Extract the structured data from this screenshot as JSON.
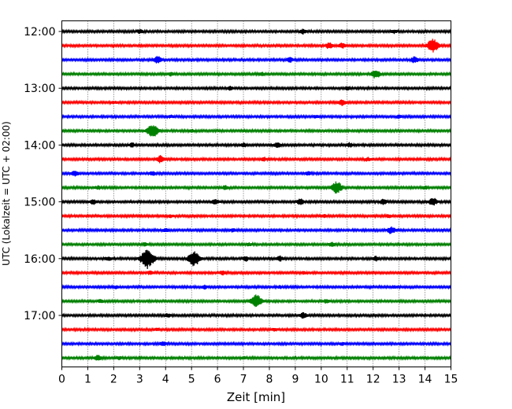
{
  "chart_data": {
    "type": "line",
    "title": "",
    "xlabel": "Zeit  [min]",
    "ylabel": "UTC (Lokalzeit = UTC + 02:00)",
    "xlim": [
      0,
      15
    ],
    "x_ticks": [
      "0",
      "1",
      "2",
      "3",
      "4",
      "5",
      "6",
      "7",
      "8",
      "9",
      "10",
      "11",
      "12",
      "13",
      "14",
      "15"
    ],
    "y_ticks": [
      "12:00",
      "13:00",
      "14:00",
      "15:00",
      "16:00",
      "17:00"
    ],
    "grid": "vertical-dotted",
    "row_colors": [
      "#000000",
      "#ff0000",
      "#0000ff",
      "#008000"
    ],
    "rows": [
      {
        "time": "12:00",
        "events": [
          {
            "x": 3.0,
            "amp": 0.25
          },
          {
            "x": 9.3,
            "amp": 0.3
          },
          {
            "x": 12.8,
            "amp": 0.2
          }
        ]
      },
      {
        "time": "12:15",
        "events": [
          {
            "x": 10.3,
            "amp": 0.35
          },
          {
            "x": 10.8,
            "amp": 0.3
          },
          {
            "x": 14.3,
            "amp": 0.9
          }
        ]
      },
      {
        "time": "12:30",
        "events": [
          {
            "x": 3.7,
            "amp": 0.45
          },
          {
            "x": 8.8,
            "amp": 0.3
          },
          {
            "x": 13.6,
            "amp": 0.4
          }
        ]
      },
      {
        "time": "12:45",
        "events": [
          {
            "x": 4.2,
            "amp": 0.2
          },
          {
            "x": 7.7,
            "amp": 0.2
          },
          {
            "x": 12.1,
            "amp": 0.55
          }
        ]
      },
      {
        "time": "13:00",
        "events": [
          {
            "x": 6.5,
            "amp": 0.2
          },
          {
            "x": 11.0,
            "amp": 0.2
          }
        ]
      },
      {
        "time": "13:15",
        "events": [
          {
            "x": 2.0,
            "amp": 0.15
          },
          {
            "x": 10.8,
            "amp": 0.35
          }
        ]
      },
      {
        "time": "13:30",
        "events": [
          {
            "x": 4.2,
            "amp": 0.15
          },
          {
            "x": 9.8,
            "amp": 0.15
          },
          {
            "x": 13.0,
            "amp": 0.2
          }
        ]
      },
      {
        "time": "13:45",
        "events": [
          {
            "x": 3.5,
            "amp": 0.9
          },
          {
            "x": 5.0,
            "amp": 0.15
          }
        ]
      },
      {
        "time": "14:00",
        "events": [
          {
            "x": 2.7,
            "amp": 0.25
          },
          {
            "x": 7.0,
            "amp": 0.25
          },
          {
            "x": 8.3,
            "amp": 0.3
          },
          {
            "x": 11.1,
            "amp": 0.25
          }
        ]
      },
      {
        "time": "14:15",
        "events": [
          {
            "x": 3.8,
            "amp": 0.45
          },
          {
            "x": 7.8,
            "amp": 0.2
          },
          {
            "x": 11.8,
            "amp": 0.2
          }
        ]
      },
      {
        "time": "14:30",
        "events": [
          {
            "x": 0.5,
            "amp": 0.35
          },
          {
            "x": 3.5,
            "amp": 0.25
          },
          {
            "x": 9.5,
            "amp": 0.2
          }
        ]
      },
      {
        "time": "14:45",
        "events": [
          {
            "x": 1.4,
            "amp": 0.2
          },
          {
            "x": 6.3,
            "amp": 0.25
          },
          {
            "x": 10.6,
            "amp": 0.8
          },
          {
            "x": 14.0,
            "amp": 0.2
          }
        ]
      },
      {
        "time": "15:00",
        "events": [
          {
            "x": 1.2,
            "amp": 0.3
          },
          {
            "x": 5.9,
            "amp": 0.35
          },
          {
            "x": 9.2,
            "amp": 0.35
          },
          {
            "x": 12.4,
            "amp": 0.35
          },
          {
            "x": 14.3,
            "amp": 0.5
          }
        ]
      },
      {
        "time": "15:15",
        "events": [
          {
            "x": 4.2,
            "amp": 0.15
          },
          {
            "x": 10.1,
            "amp": 0.2
          },
          {
            "x": 12.6,
            "amp": 0.15
          }
        ]
      },
      {
        "time": "15:30",
        "events": [
          {
            "x": 4.0,
            "amp": 0.2
          },
          {
            "x": 6.6,
            "amp": 0.2
          },
          {
            "x": 12.7,
            "amp": 0.45
          }
        ]
      },
      {
        "time": "15:45",
        "events": [
          {
            "x": 3.2,
            "amp": 0.2
          },
          {
            "x": 7.2,
            "amp": 0.15
          },
          {
            "x": 10.4,
            "amp": 0.25
          }
        ]
      },
      {
        "time": "16:00",
        "events": [
          {
            "x": 1.8,
            "amp": 0.25
          },
          {
            "x": 3.3,
            "amp": 1.3
          },
          {
            "x": 5.1,
            "amp": 1.0
          },
          {
            "x": 7.1,
            "amp": 0.3
          },
          {
            "x": 8.4,
            "amp": 0.3
          },
          {
            "x": 12.1,
            "amp": 0.25
          }
        ]
      },
      {
        "time": "16:15",
        "events": [
          {
            "x": 3.4,
            "amp": 0.2
          },
          {
            "x": 6.2,
            "amp": 0.2
          },
          {
            "x": 9.3,
            "amp": 0.15
          }
        ]
      },
      {
        "time": "16:30",
        "events": [
          {
            "x": 2.1,
            "amp": 0.15
          },
          {
            "x": 5.5,
            "amp": 0.2
          },
          {
            "x": 8.4,
            "amp": 0.15
          },
          {
            "x": 12.8,
            "amp": 0.15
          }
        ]
      },
      {
        "time": "16:45",
        "events": [
          {
            "x": 1.5,
            "amp": 0.2
          },
          {
            "x": 7.5,
            "amp": 0.85
          },
          {
            "x": 10.2,
            "amp": 0.25
          }
        ]
      },
      {
        "time": "17:00",
        "events": [
          {
            "x": 4.1,
            "amp": 0.2
          },
          {
            "x": 9.3,
            "amp": 0.35
          }
        ]
      },
      {
        "time": "17:15",
        "events": [
          {
            "x": 3.7,
            "amp": 0.15
          },
          {
            "x": 8.2,
            "amp": 0.15
          }
        ]
      },
      {
        "time": "17:30",
        "events": [
          {
            "x": 3.9,
            "amp": 0.25
          },
          {
            "x": 10.8,
            "amp": 0.15
          }
        ]
      },
      {
        "time": "17:45",
        "events": [
          {
            "x": 1.4,
            "amp": 0.35
          },
          {
            "x": 2.2,
            "amp": 0.2
          },
          {
            "x": 7.0,
            "amp": 0.15
          }
        ]
      }
    ]
  }
}
